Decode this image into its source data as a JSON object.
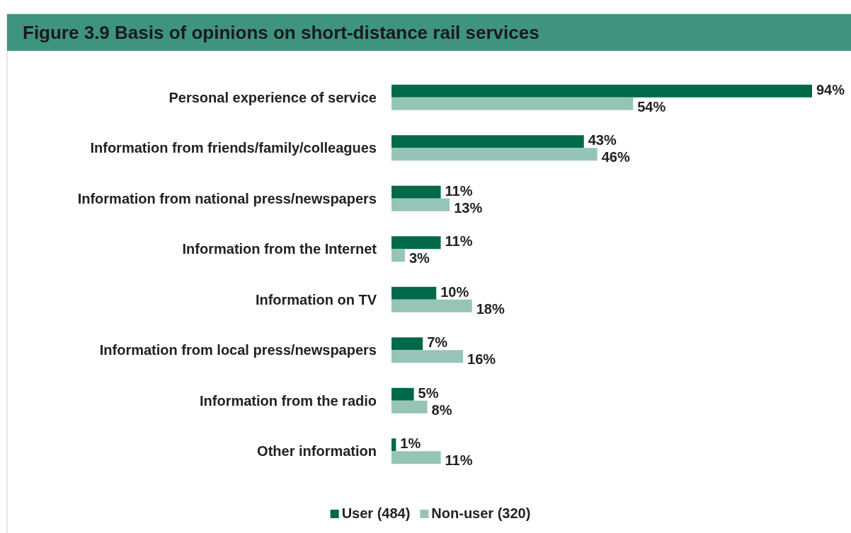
{
  "chart_data": {
    "type": "bar",
    "orientation": "horizontal",
    "title": "Figure 3.9 Basis of opinions on short-distance rail services",
    "categories": [
      "Personal experience of service",
      "Information from friends/family/colleagues",
      "Information from national press/newspapers",
      "Information from the Internet",
      "Information on TV",
      "Information from local press/newspapers",
      "Information from the radio",
      "Other information"
    ],
    "series": [
      {
        "name": "User (484)",
        "color": "#00694a",
        "values": [
          94,
          43,
          11,
          11,
          10,
          7,
          5,
          1
        ],
        "value_labels": [
          "94%",
          "43%",
          "11%",
          "11%",
          "10%",
          "7%",
          "5%",
          "1%"
        ]
      },
      {
        "name": "Non-user (320)",
        "color": "#96c5b8",
        "values": [
          54,
          46,
          13,
          3,
          18,
          16,
          8,
          11
        ],
        "value_labels": [
          "54%",
          "46%",
          "13%",
          "3%",
          "18%",
          "16%",
          "8%",
          "11%"
        ]
      }
    ],
    "legend": "bottom"
  }
}
